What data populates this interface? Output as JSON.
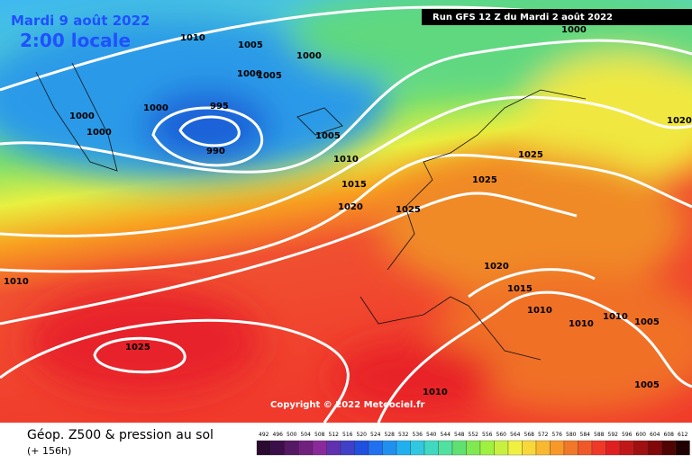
{
  "header": {
    "date": "Mardi 9 août 2022",
    "time": "2:00 locale",
    "run": "Run GFS 12 Z du Mardi 2 août 2022"
  },
  "copyright": "Copyright © 2022 Meteociel.fr",
  "footer": {
    "title": "Géop. Z500 & pression au sol",
    "lead": "(+ 156h)"
  },
  "scale_labels": [
    "492",
    "496",
    "500",
    "504",
    "508",
    "512",
    "516",
    "520",
    "524",
    "528",
    "532",
    "536",
    "540",
    "544",
    "548",
    "552",
    "556",
    "560",
    "564",
    "568",
    "572",
    "576",
    "580",
    "584",
    "588",
    "592",
    "596",
    "600",
    "604",
    "608",
    "612"
  ],
  "isobar_labels": [
    "1010",
    "1005",
    "1000",
    "1000",
    "1005",
    "1000",
    "1000",
    "1000",
    "995",
    "990",
    "1005",
    "1010",
    "1015",
    "1020",
    "1025",
    "1025",
    "1025",
    "1020",
    "1020",
    "1015",
    "1010",
    "1010",
    "1010",
    "1005",
    "1005",
    "1010",
    "1025",
    "1010",
    "1000"
  ]
}
